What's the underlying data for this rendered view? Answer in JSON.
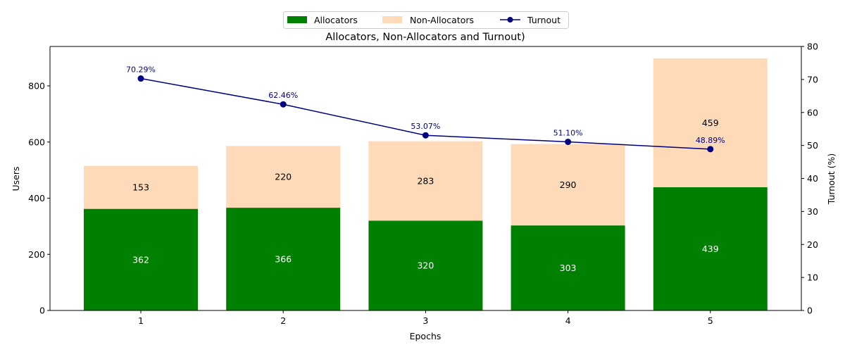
{
  "chart_data": {
    "type": "bar",
    "subtype": "stacked bar with line on secondary axis",
    "title": "Allocators, Non-Allocators and Turnout)",
    "xlabel": "Epochs",
    "ylabel": "Users",
    "y2label": "Turnout (%)",
    "categories": [
      "1",
      "2",
      "3",
      "4",
      "5"
    ],
    "series": [
      {
        "name": "Allocators",
        "kind": "bar",
        "axis": "left",
        "color": "#008000",
        "values": [
          362,
          366,
          320,
          303,
          439
        ]
      },
      {
        "name": "Non-Allocators",
        "kind": "bar",
        "axis": "left",
        "color": "#FFDAB9",
        "values": [
          153,
          220,
          283,
          290,
          459
        ]
      },
      {
        "name": "Turnout",
        "kind": "line",
        "axis": "right",
        "color": "#000080",
        "values": [
          70.29,
          62.46,
          53.07,
          51.1,
          48.89
        ],
        "labels": [
          "70.29%",
          "62.46%",
          "53.07%",
          "51.10%",
          "48.89%"
        ]
      }
    ],
    "ylim": [
      0,
      940
    ],
    "y2lim": [
      0,
      80
    ],
    "yticks": [
      0,
      200,
      400,
      600,
      800
    ],
    "y2ticks": [
      0,
      10,
      20,
      30,
      40,
      50,
      60,
      70,
      80
    ],
    "grid": false,
    "legend_position": "upper center, above plot"
  },
  "legend": {
    "items": [
      {
        "label": "Allocators",
        "type": "patch",
        "color": "#008000"
      },
      {
        "label": "Non-Allocators",
        "type": "patch",
        "color": "#FFDAB9"
      },
      {
        "label": "Turnout",
        "type": "line-marker",
        "color": "#000080"
      }
    ]
  }
}
